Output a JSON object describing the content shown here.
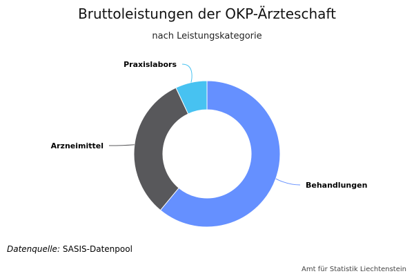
{
  "chart_data": {
    "type": "pie",
    "variant": "donut",
    "title": "Bruttoleistungen der OKP-Ärzteschaft",
    "subtitle": "nach Leistungskategorie",
    "slices": [
      {
        "label": "Behandlungen",
        "value": 61,
        "color": "#6590ff"
      },
      {
        "label": "Arzneimittel",
        "value": 32,
        "color": "#58585b"
      },
      {
        "label": "Praxislabors",
        "value": 7,
        "color": "#47c2f1"
      }
    ],
    "legend": false
  },
  "footer": {
    "source_label": "Datenquelle:",
    "source_value": "SASIS-Datenpool",
    "credits": "Amt für Statistik Liechtenstein"
  }
}
